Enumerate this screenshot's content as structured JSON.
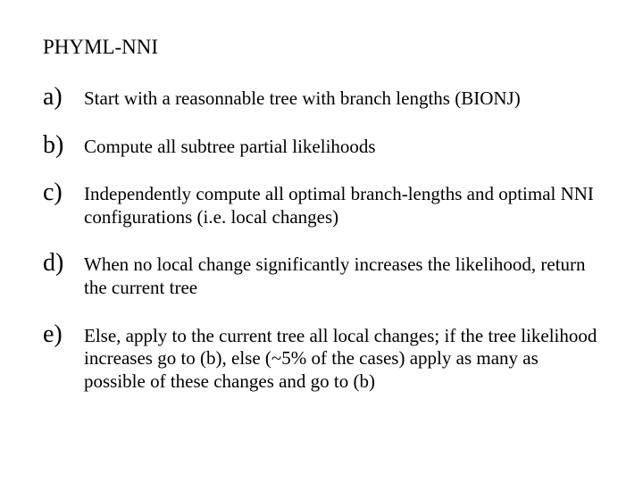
{
  "title": "PHYML-NNI",
  "items": [
    {
      "marker": "a)",
      "text": "Start with a reasonnable tree with branch lengths (BIONJ)"
    },
    {
      "marker": "b)",
      "text": "Compute all subtree partial likelihoods"
    },
    {
      "marker": "c)",
      "text": "Independently compute all optimal branch-lengths and optimal NNI configurations (i.e. local changes)"
    },
    {
      "marker": "d)",
      "text": "When no local change significantly increases the likelihood, return the current tree"
    },
    {
      "marker": "e)",
      "text": "Else, apply to the current tree all local changes; if the tree likelihood increases go to (b), else (~5% of the cases) apply as many as possible of these changes and go to (b)"
    }
  ],
  "colors": {
    "background": "#ffffff",
    "text": "#000000"
  },
  "typography": {
    "title_fontsize_pt": 17,
    "marker_fontsize_pt": 21,
    "body_fontsize_pt": 16,
    "font_family": "Times New Roman"
  }
}
